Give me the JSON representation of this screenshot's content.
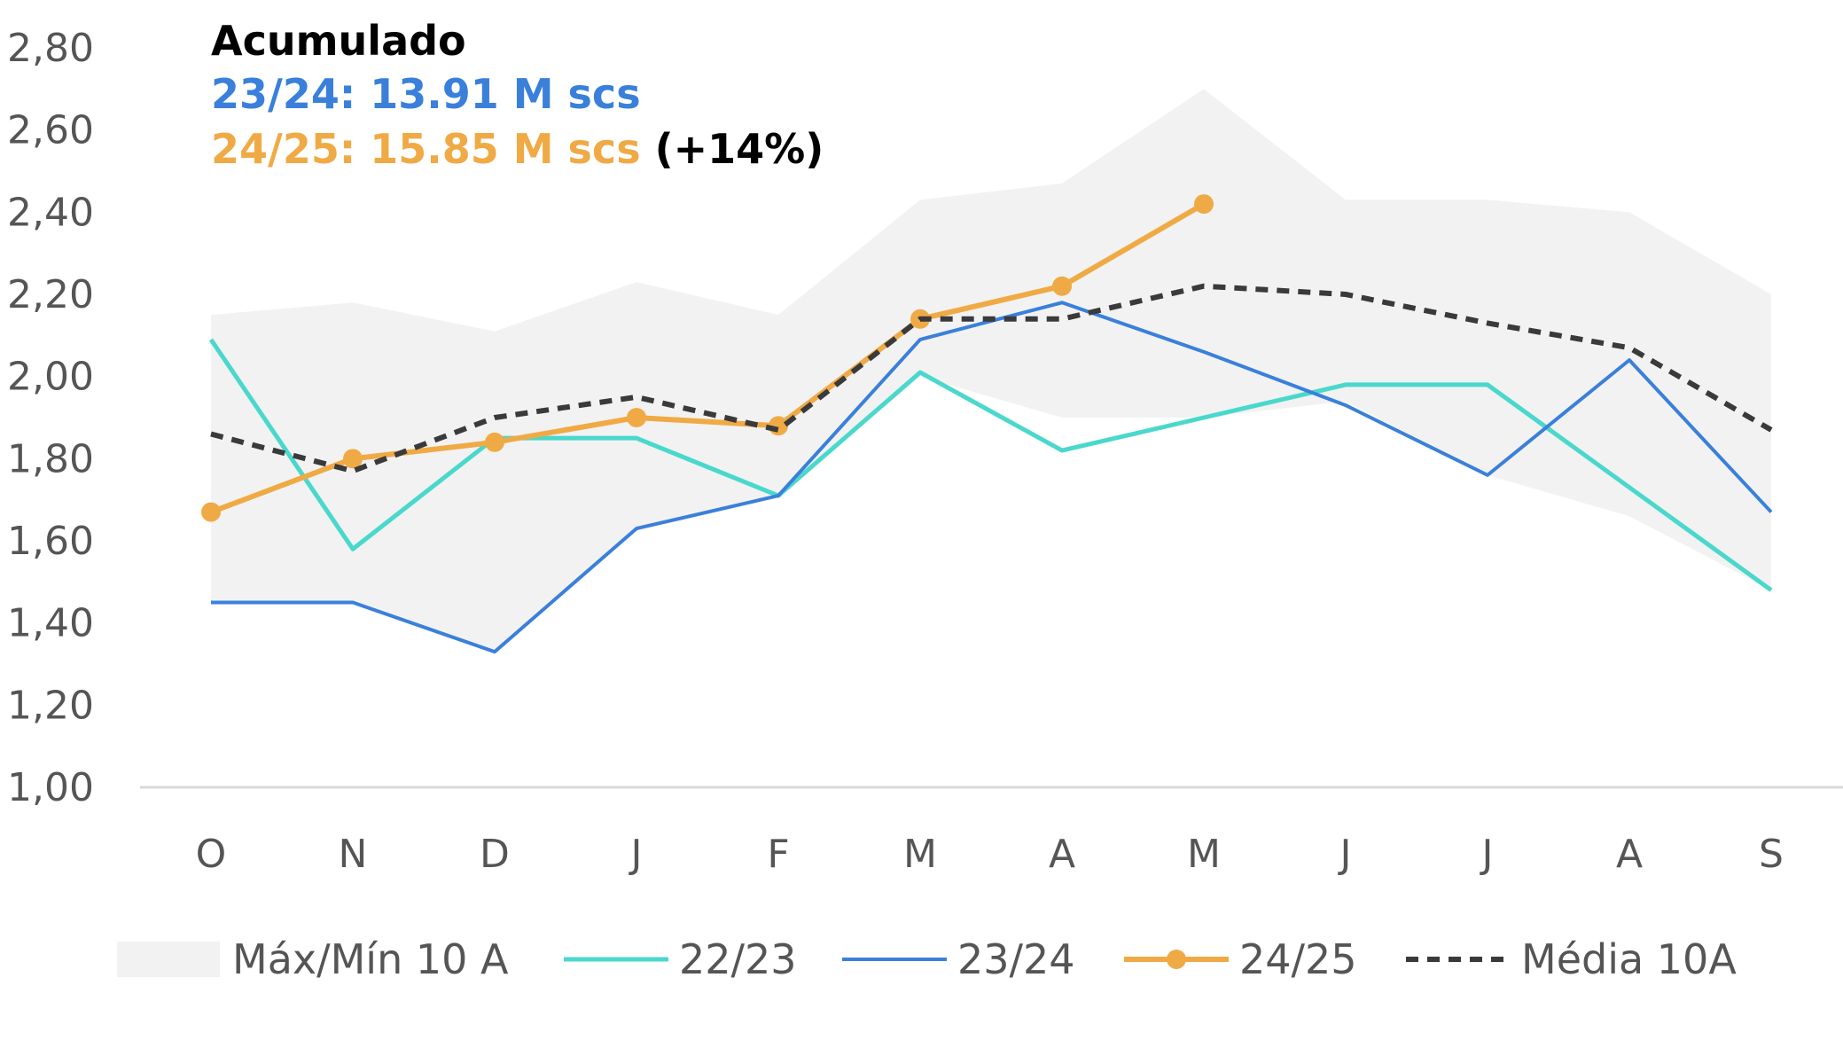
{
  "chart_data": {
    "type": "line",
    "categories": [
      "O",
      "N",
      "D",
      "J",
      "F",
      "M",
      "A",
      "M",
      "J",
      "J",
      "A",
      "S"
    ],
    "ylim": [
      1.0,
      2.8
    ],
    "yticks": [
      "1,00",
      "1,20",
      "1,40",
      "1,60",
      "1,80",
      "2,00",
      "2,20",
      "2,40",
      "2,60",
      "2,80"
    ],
    "ytick_values": [
      1.0,
      1.2,
      1.4,
      1.6,
      1.8,
      2.0,
      2.2,
      2.4,
      2.6,
      2.8
    ],
    "grid": false,
    "legend_position": "bottom",
    "band": {
      "name": "Máx/Mín 10 A",
      "color": "#f2f2f2",
      "max": [
        2.15,
        2.18,
        2.11,
        2.23,
        2.15,
        2.43,
        2.47,
        2.7,
        2.43,
        2.43,
        2.4,
        2.2
      ],
      "min": [
        1.45,
        1.45,
        1.33,
        1.63,
        1.71,
        2.0,
        1.9,
        1.9,
        1.94,
        1.76,
        1.66,
        1.48
      ]
    },
    "series": [
      {
        "name": "22/23",
        "color": "#4ad8cc",
        "style": "solid",
        "values": [
          2.09,
          1.58,
          1.85,
          1.85,
          1.71,
          2.01,
          1.82,
          1.9,
          1.98,
          1.98,
          1.73,
          1.48
        ]
      },
      {
        "name": "23/24",
        "color": "#3a80da",
        "style": "solid",
        "values": [
          1.45,
          1.45,
          1.33,
          1.63,
          1.71,
          2.09,
          2.18,
          2.06,
          1.93,
          1.76,
          2.04,
          1.67
        ]
      },
      {
        "name": "24/25",
        "color": "#f0aa45",
        "style": "solid-markers",
        "values": [
          1.67,
          1.8,
          1.84,
          1.9,
          1.88,
          2.14,
          2.22,
          2.42,
          null,
          null,
          null,
          null
        ]
      },
      {
        "name": "Média 10A",
        "color": "#3a3a3a",
        "style": "dashed",
        "values": [
          1.86,
          1.77,
          1.9,
          1.95,
          1.87,
          2.14,
          2.14,
          2.22,
          2.2,
          2.13,
          2.07,
          1.87
        ]
      }
    ],
    "annotations": {
      "title": "Acumulado",
      "line1": "23/24: 13.91 M scs",
      "line2": "24/25: 15.85 M scs",
      "line2_suffix": " (+14%)",
      "title_color": "#000000",
      "line1_color": "#3a80da",
      "line2_color": "#f0aa45",
      "suffix_color": "#000000"
    }
  }
}
